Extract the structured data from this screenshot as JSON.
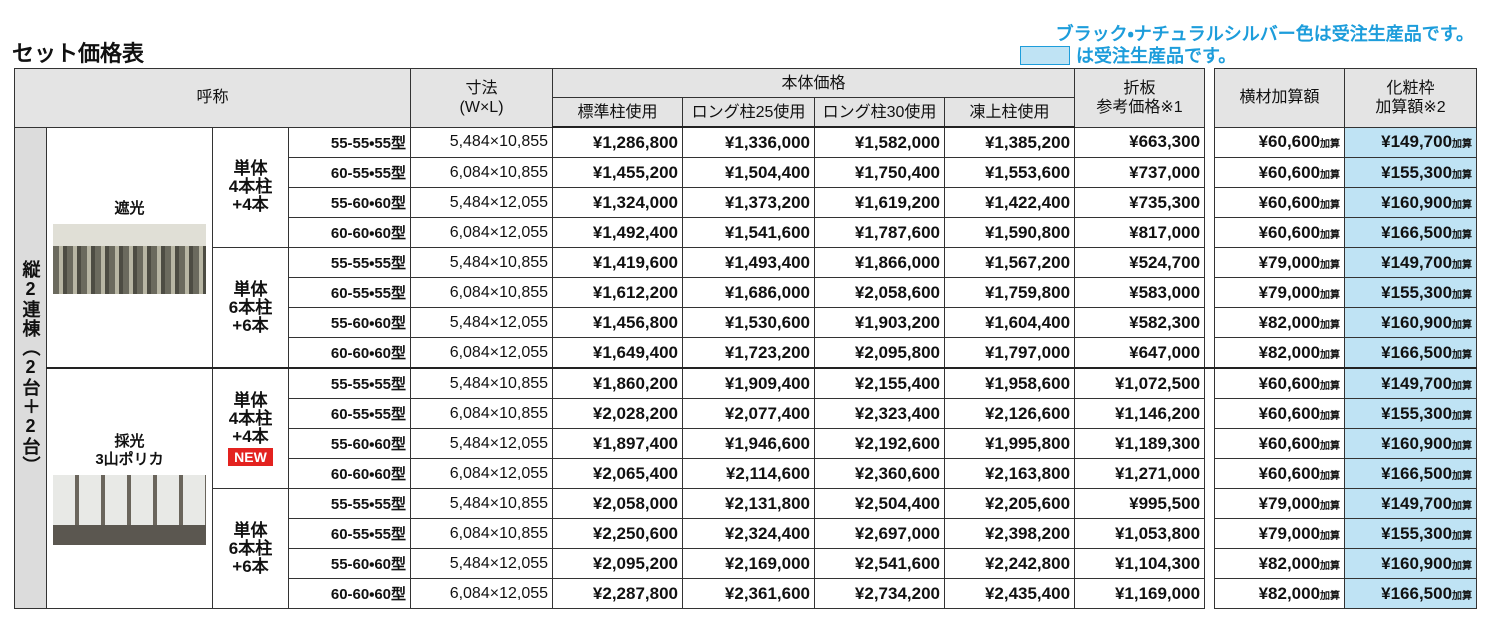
{
  "title": "セット価格表",
  "notes": {
    "line1": "ブラック・ナチュラルシルバー色は受注生産品です。",
    "line2": "は受注生産品です。"
  },
  "table": {
    "header": {
      "name": "呼称",
      "size": [
        "寸法",
        "(W×L)"
      ],
      "body_price": "本体価格",
      "body_price_cols": [
        "標準柱使用",
        "ロング柱25使用",
        "ロング柱30使用",
        "凍上柱使用"
      ],
      "fold": [
        "折板",
        "参考価格※1"
      ],
      "cross": "横材加算額",
      "frame": [
        "化粧枠",
        "加算額※2"
      ]
    },
    "group_label": "縦2連棟（2台＋2台）",
    "add_suffix": "加算",
    "sections": [
      {
        "roof": [
          "遮光"
        ],
        "configs": [
          {
            "label": [
              "単体",
              "4本柱",
              "+4本"
            ],
            "rows": [
              [
                "55-55・55型",
                "5,484×10,855",
                "¥1,286,800",
                "¥1,336,000",
                "¥1,582,000",
                "¥1,385,200",
                "¥663,300",
                "¥60,600",
                "¥149,700"
              ],
              [
                "60-55・55型",
                "6,084×10,855",
                "¥1,455,200",
                "¥1,504,400",
                "¥1,750,400",
                "¥1,553,600",
                "¥737,000",
                "¥60,600",
                "¥155,300"
              ],
              [
                "55-60・60型",
                "5,484×12,055",
                "¥1,324,000",
                "¥1,373,200",
                "¥1,619,200",
                "¥1,422,400",
                "¥735,300",
                "¥60,600",
                "¥160,900"
              ],
              [
                "60-60・60型",
                "6,084×12,055",
                "¥1,492,400",
                "¥1,541,600",
                "¥1,787,600",
                "¥1,590,800",
                "¥817,000",
                "¥60,600",
                "¥166,500"
              ]
            ]
          },
          {
            "label": [
              "単体",
              "6本柱",
              "+6本"
            ],
            "rows": [
              [
                "55-55・55型",
                "5,484×10,855",
                "¥1,419,600",
                "¥1,493,400",
                "¥1,866,000",
                "¥1,567,200",
                "¥524,700",
                "¥79,000",
                "¥149,700"
              ],
              [
                "60-55・55型",
                "6,084×10,855",
                "¥1,612,200",
                "¥1,686,000",
                "¥2,058,600",
                "¥1,759,800",
                "¥583,000",
                "¥79,000",
                "¥155,300"
              ],
              [
                "55-60・60型",
                "5,484×12,055",
                "¥1,456,800",
                "¥1,530,600",
                "¥1,903,200",
                "¥1,604,400",
                "¥582,300",
                "¥82,000",
                "¥160,900"
              ],
              [
                "60-60・60型",
                "6,084×12,055",
                "¥1,649,400",
                "¥1,723,200",
                "¥2,095,800",
                "¥1,797,000",
                "¥647,000",
                "¥82,000",
                "¥166,500"
              ]
            ]
          }
        ]
      },
      {
        "roof": [
          "採光",
          "3山ポリカ"
        ],
        "configs": [
          {
            "label": [
              "単体",
              "4本柱",
              "+4本"
            ],
            "badge": "NEW",
            "rows": [
              [
                "55-55・55型",
                "5,484×10,855",
                "¥1,860,200",
                "¥1,909,400",
                "¥2,155,400",
                "¥1,958,600",
                "¥1,072,500",
                "¥60,600",
                "¥149,700"
              ],
              [
                "60-55・55型",
                "6,084×10,855",
                "¥2,028,200",
                "¥2,077,400",
                "¥2,323,400",
                "¥2,126,600",
                "¥1,146,200",
                "¥60,600",
                "¥155,300"
              ],
              [
                "55-60・60型",
                "5,484×12,055",
                "¥1,897,400",
                "¥1,946,600",
                "¥2,192,600",
                "¥1,995,800",
                "¥1,189,300",
                "¥60,600",
                "¥160,900"
              ],
              [
                "60-60・60型",
                "6,084×12,055",
                "¥2,065,400",
                "¥2,114,600",
                "¥2,360,600",
                "¥2,163,800",
                "¥1,271,000",
                "¥60,600",
                "¥166,500"
              ]
            ]
          },
          {
            "label": [
              "単体",
              "6本柱",
              "+6本"
            ],
            "rows": [
              [
                "55-55・55型",
                "5,484×10,855",
                "¥2,058,000",
                "¥2,131,800",
                "¥2,504,400",
                "¥2,205,600",
                "¥995,500",
                "¥79,000",
                "¥149,700"
              ],
              [
                "60-55・55型",
                "6,084×10,855",
                "¥2,250,600",
                "¥2,324,400",
                "¥2,697,000",
                "¥2,398,200",
                "¥1,053,800",
                "¥79,000",
                "¥155,300"
              ],
              [
                "55-60・60型",
                "5,484×12,055",
                "¥2,095,200",
                "¥2,169,000",
                "¥2,541,600",
                "¥2,242,800",
                "¥1,104,300",
                "¥82,000",
                "¥160,900"
              ],
              [
                "60-60・60型",
                "6,084×12,055",
                "¥2,287,800",
                "¥2,361,600",
                "¥2,734,200",
                "¥2,435,400",
                "¥1,169,000",
                "¥82,000",
                "¥166,500"
              ]
            ]
          }
        ]
      }
    ]
  }
}
